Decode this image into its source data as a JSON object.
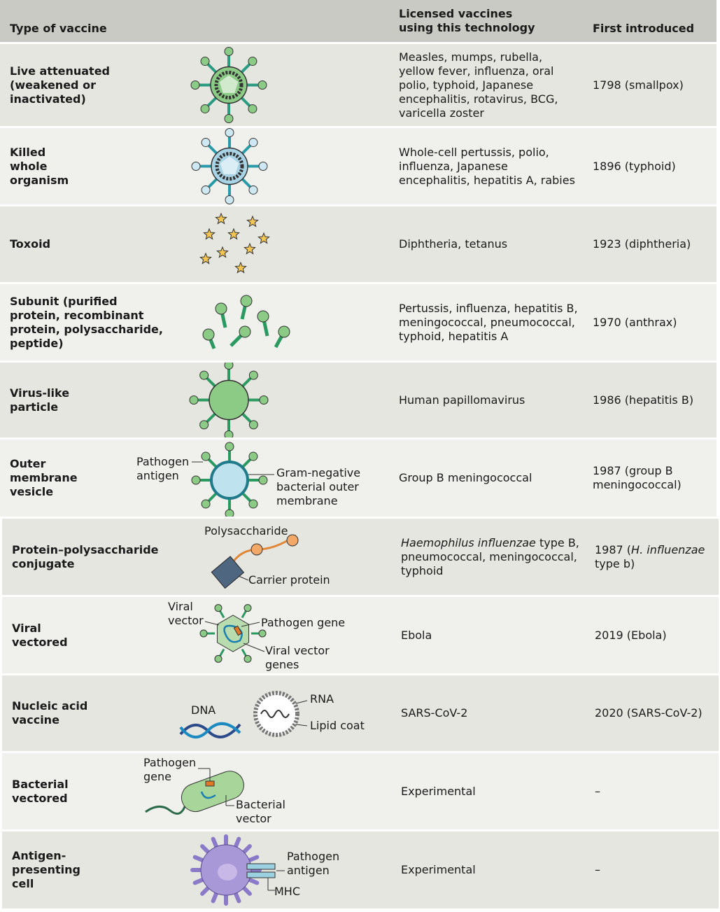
{
  "header": {
    "type": "Type of vaccine",
    "licensed": "Licensed vaccines\nusing this technology",
    "first": "First introduced"
  },
  "colors": {
    "header_bg": "#c9cac3",
    "row_dark": "#e6e6e1",
    "row_light": "#f0f0ec",
    "green": "#7cbf7a",
    "teal": "#2a9a80",
    "blue": "#a8d4e6",
    "orange": "#f0a060",
    "star": "#f3c552"
  },
  "rows": [
    {
      "type": "Live attenuated (weakened or inactivated)",
      "licensed": "Measles, mumps, rubella, yellow fever, influenza, oral polio, typhoid, Japanese encephalitis, rotavirus, BCG, varicella zoster",
      "first": "1798 (smallpox)",
      "icon": "virus-green-icon"
    },
    {
      "type": "Killed whole organism",
      "licensed": "Whole-cell pertussis, polio, influenza, Japanese encephalitis, hepatitis A, rabies",
      "first": "1896 (typhoid)",
      "icon": "virus-blue-icon"
    },
    {
      "type": "Toxoid",
      "licensed": "Diphtheria, tetanus",
      "first": "1923 (diphtheria)",
      "icon": "stars-icon"
    },
    {
      "type": "Subunit (purified protein, recombinant protein, polysaccharide, peptide)",
      "licensed": "Pertussis, influenza, hepatitis B, meningococcal, pneumococcal, typhoid, hepatitis A",
      "first": "1970 (anthrax)",
      "icon": "protein-subunits-icon"
    },
    {
      "type": "Virus-like particle",
      "licensed": "Human papillomavirus",
      "first": "1986 (hepatitis B)",
      "icon": "virus-like-particle-icon"
    },
    {
      "type": "Outer membrane vesicle",
      "licensed": "Group B meningococcal",
      "first": "1987 (group B meningococcal)",
      "icon": "vesicle-icon",
      "labels": {
        "antigen": "Pathogen\nantigen",
        "membrane": "Gram-negative\nbacterial outer\nmembrane"
      }
    },
    {
      "type": "Protein–polysaccharide conjugate",
      "licensed_italic": "Haemophilus influenzae",
      "licensed": " type B, pneumococcal, meningococcal, typhoid",
      "first_pre": "1987 (",
      "first_italic": "H. influenzae",
      "first": " type b)",
      "icon": "conjugate-icon",
      "labels": {
        "poly": "Polysaccharide",
        "carrier": "Carrier protein"
      }
    },
    {
      "type": "Viral vectored",
      "licensed": "Ebola",
      "first": "2019 (Ebola)",
      "icon": "viral-vector-icon",
      "labels": {
        "vector": "Viral\nvector",
        "gene": "Pathogen gene",
        "vgenes": "Viral vector\ngenes"
      }
    },
    {
      "type": "Nucleic acid vaccine",
      "licensed": "SARS-CoV-2",
      "first": "2020 (SARS-CoV-2)",
      "icon": "nucleic-acid-icon",
      "labels": {
        "dna": "DNA",
        "rna": "RNA",
        "lipid": "Lipid coat"
      }
    },
    {
      "type": "Bacterial vectored",
      "licensed": "Experimental",
      "first": "–",
      "icon": "bacterium-icon",
      "labels": {
        "gene": "Pathogen\ngene",
        "vector": "Bacterial\nvector"
      }
    },
    {
      "type": "Antigen-presenting cell",
      "licensed": "Experimental",
      "first": "–",
      "icon": "dendritic-cell-icon",
      "labels": {
        "antigen": "Pathogen\nantigen",
        "mhc": "MHC"
      }
    }
  ]
}
